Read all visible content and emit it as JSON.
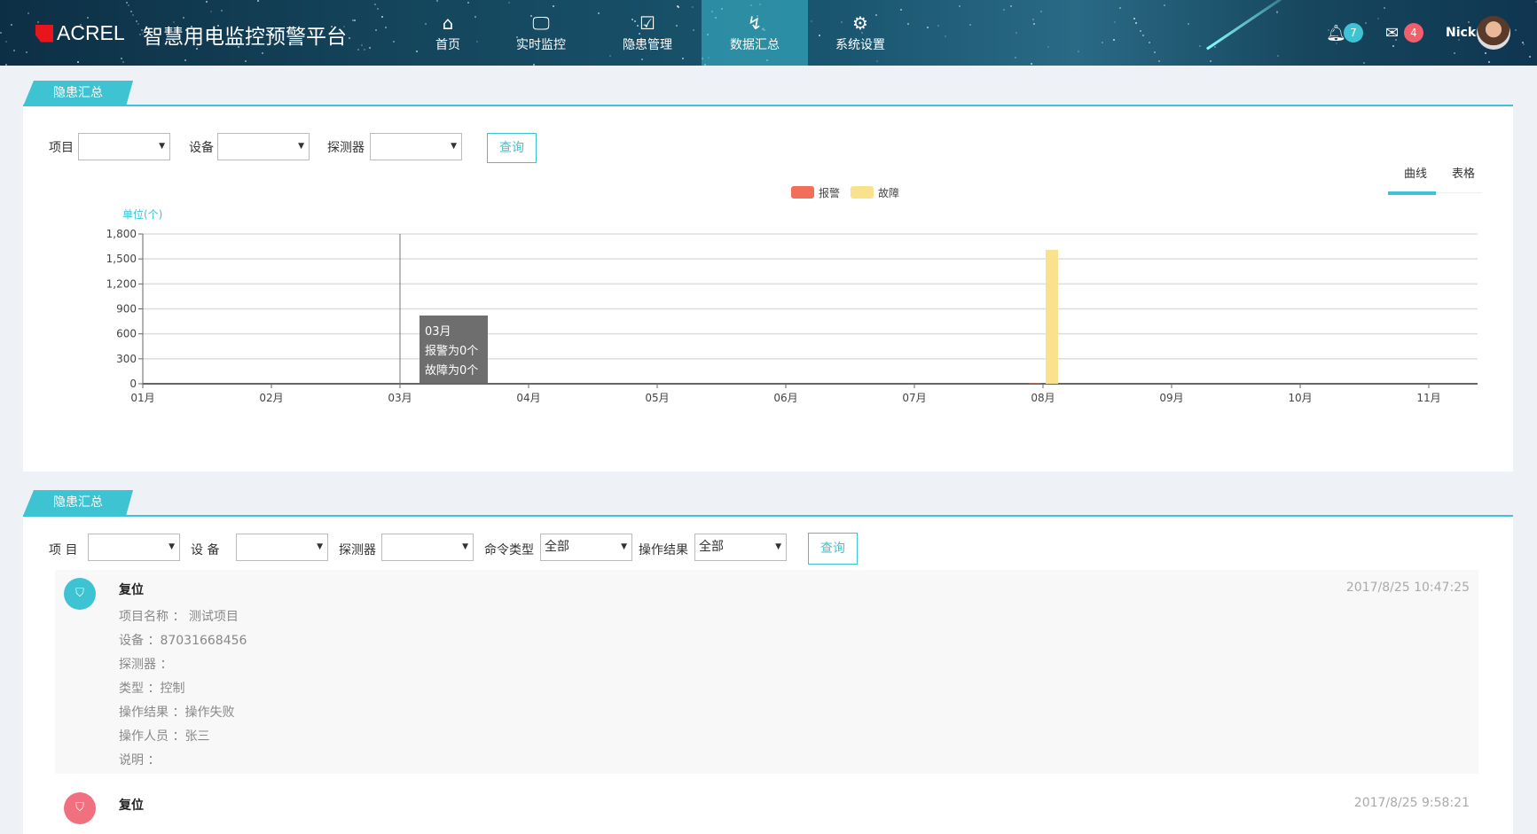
{
  "header": {
    "logo": "ACREL",
    "title": "智慧用电监控预警平台",
    "nav": [
      {
        "label": "首页",
        "icon": "home-icon"
      },
      {
        "label": "实时监控",
        "icon": "monitor-search-icon"
      },
      {
        "label": "隐患管理",
        "icon": "clipboard-check-icon"
      },
      {
        "label": "数据汇总",
        "icon": "data-summary-icon",
        "active": true
      },
      {
        "label": "系统设置",
        "icon": "gears-icon"
      }
    ],
    "notifications": "7",
    "messages": "4",
    "user": "Nick",
    "accent": "#3ec3d3"
  },
  "summary": {
    "tab": "隐患汇总",
    "filters": {
      "project_label": "项目",
      "device_label": "设备",
      "detector_label": "探测器",
      "project_value": "",
      "device_value": "",
      "detector_value": "",
      "query": "查询"
    },
    "view_tabs": [
      {
        "label": "曲线",
        "active": true
      },
      {
        "label": "表格"
      }
    ],
    "tooltip": {
      "title": "03月",
      "alarm": "报警为0个",
      "fault": "故障为0个"
    }
  },
  "chart_data": {
    "type": "bar",
    "ylabel": "单位(个)",
    "ylim": [
      0,
      1800
    ],
    "yticks": [
      "0",
      "300",
      "600",
      "900",
      "1,200",
      "1,500",
      "1,800"
    ],
    "grid": true,
    "legend": "top-center",
    "categories": [
      "01月",
      "02月",
      "03月",
      "04月",
      "05月",
      "06月",
      "07月",
      "08月",
      "09月",
      "10月",
      "11月"
    ],
    "series": [
      {
        "name": "报警",
        "color": "#f06e5a",
        "values": [
          0,
          0,
          0,
          0,
          0,
          0,
          0,
          5,
          0,
          0,
          0
        ]
      },
      {
        "name": "故障",
        "color": "#fae18e",
        "values": [
          0,
          0,
          0,
          0,
          0,
          0,
          0,
          1610,
          0,
          0,
          0
        ]
      }
    ]
  },
  "log": {
    "tab": "隐患汇总",
    "filters": {
      "project_label": "项 目",
      "device_label": "设 备",
      "detector_label": "探测器",
      "cmd_label": "命令类型",
      "result_label": "操作结果",
      "project_value": "",
      "device_value": "",
      "detector_value": "",
      "cmd_value": "全部",
      "result_value": "全部",
      "query": "查询"
    },
    "items": [
      {
        "title": "复位",
        "date": "2017/8/25 10:47:25",
        "color": "#3ec3d3",
        "lines": [
          "项目名称 ： 测试项目",
          "设备 ：87031668456",
          "探测器 ：",
          "类型 ：控制",
          "操作结果 ：操作失败",
          "操作人员 ：张三",
          "说明 ："
        ]
      },
      {
        "title": "复位",
        "date": "2017/8/25 9:58:21",
        "color": "#f07080"
      }
    ]
  }
}
